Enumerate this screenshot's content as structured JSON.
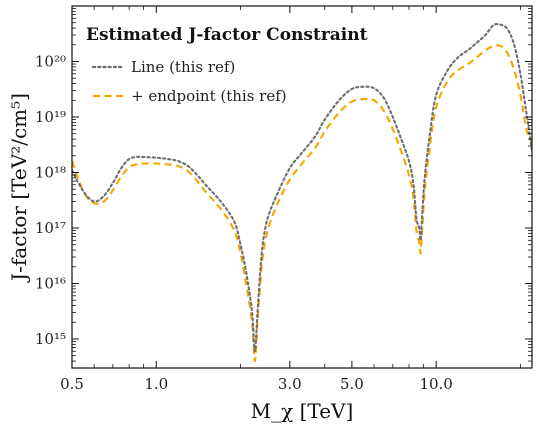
{
  "chart_data": {
    "type": "line",
    "xscale": "log",
    "yscale": "log",
    "xlim": [
      0.5,
      22
    ],
    "ylim": [
      300000000000000.0,
      1e+21
    ],
    "xlabel": "M_χ [TeV]",
    "ylabel": "J-factor [TeV²/cm⁵]",
    "x_ticks": [
      {
        "value": 0.5,
        "label": "0.5"
      },
      {
        "value": 1.0,
        "label": "1.0"
      },
      {
        "value": 3.0,
        "label": "3.0"
      },
      {
        "value": 5.0,
        "label": "5.0"
      },
      {
        "value": 10.0,
        "label": "10.0"
      }
    ],
    "y_ticks": [
      {
        "value": 1000000000000000.0,
        "label": "10¹⁵"
      },
      {
        "value": 1e+16,
        "label": "10¹⁶"
      },
      {
        "value": 1e+17,
        "label": "10¹⁷"
      },
      {
        "value": 1e+18,
        "label": "10¹⁸"
      },
      {
        "value": 1e+19,
        "label": "10¹⁹"
      },
      {
        "value": 1e+20,
        "label": "10²⁰"
      }
    ],
    "legend": {
      "title": "Estimated J-factor Constraint",
      "placement": "top-left",
      "entries": [
        "Line (this ref)",
        "+ endpoint (this ref)"
      ]
    },
    "series": [
      {
        "name": "Line (this ref)",
        "color": "#6e6e6e",
        "style": "dotted",
        "x": [
          0.5,
          0.55,
          0.6,
          0.65,
          0.7,
          0.75,
          0.8,
          0.85,
          0.9,
          1.0,
          1.1,
          1.2,
          1.3,
          1.4,
          1.5,
          1.7,
          1.9,
          2.0,
          2.1,
          2.2,
          2.25,
          2.3,
          2.35,
          2.4,
          2.5,
          2.7,
          3.0,
          3.3,
          3.7,
          4.0,
          4.5,
          5.0,
          5.5,
          6.0,
          6.5,
          7.0,
          7.5,
          8.0,
          8.3,
          8.5,
          8.7,
          8.8,
          8.9,
          9.1,
          9.5,
          10.0,
          11.0,
          12.0,
          13.0,
          14.0,
          15.0,
          16.0,
          17.0,
          18.0,
          19.0,
          20.0,
          21.0,
          22.0
        ],
        "y": [
          1.1e+18,
          4.5e+17,
          3e+17,
          3.8e+17,
          6.5e+17,
          1.2e+18,
          1.75e+18,
          1.9e+18,
          1.9e+18,
          1.85e+18,
          1.75e+18,
          1.6e+18,
          1.3e+18,
          9e+17,
          6e+17,
          3e+17,
          1.3e+17,
          5e+16,
          1.5e+16,
          3000000000000000.0,
          600000000000000.0,
          3000000000000000.0,
          1.5e+16,
          5e+16,
          1.5e+17,
          4e+17,
          1.2e+18,
          2.2e+18,
          4.5e+18,
          9e+18,
          2e+19,
          3.2e+19,
          3.5e+19,
          3.3e+19,
          2.2e+19,
          1e+19,
          4e+18,
          1.6e+18,
          6e+17,
          1.5e+17,
          1e+17,
          6e+16,
          1.5e+17,
          8e+17,
          5e+18,
          2.5e+19,
          7e+19,
          1.2e+20,
          1.6e+20,
          2.2e+20,
          3e+20,
          4.5e+20,
          4.6e+20,
          3.8e+20,
          2e+20,
          6e+19,
          1.2e+19,
          2.5e+18
        ]
      },
      {
        "name": "+ endpoint (this ref)",
        "color": "#f5a500",
        "style": "dashed",
        "x": [
          0.5,
          0.55,
          0.6,
          0.65,
          0.7,
          0.75,
          0.8,
          0.85,
          0.9,
          1.0,
          1.1,
          1.2,
          1.3,
          1.4,
          1.5,
          1.7,
          1.9,
          2.0,
          2.1,
          2.2,
          2.25,
          2.3,
          2.35,
          2.4,
          2.5,
          2.7,
          3.0,
          3.3,
          3.7,
          4.0,
          4.5,
          5.0,
          5.5,
          6.0,
          6.5,
          7.0,
          7.5,
          8.0,
          8.3,
          8.5,
          8.7,
          8.8,
          8.9,
          9.1,
          9.5,
          10.0,
          11.0,
          12.0,
          13.0,
          14.0,
          15.0,
          16.0,
          17.0,
          18.0,
          19.0,
          20.0,
          21.0,
          22.0
        ],
        "y": [
          1.6e+18,
          4.5e+17,
          2.8e+17,
          3e+17,
          4.8e+17,
          8.5e+17,
          1.25e+18,
          1.4e+18,
          1.45e+18,
          1.45e+18,
          1.4e+18,
          1.3e+18,
          1.05e+18,
          7e+17,
          4.5e+17,
          2.2e+17,
          9e+16,
          3.5e+16,
          9000000000000000.0,
          2000000000000000.0,
          400000000000000.0,
          2000000000000000.0,
          9000000000000000.0,
          3e+16,
          9e+16,
          2.6e+17,
          7.5e+17,
          1.4e+18,
          2.8e+18,
          5.5e+18,
          1.2e+19,
          1.9e+19,
          2.1e+19,
          2e+19,
          1.3e+19,
          6e+18,
          2.4e+18,
          9e+17,
          3.5e+17,
          9e+16,
          5.5e+16,
          3.5e+16,
          8e+16,
          4.5e+17,
          3e+18,
          1.5e+19,
          4.5e+19,
          7e+19,
          9e+19,
          1.2e+20,
          1.6e+20,
          1.9e+20,
          1.9e+20,
          1.4e+20,
          7e+19,
          2.5e+19,
          6e+18,
          3.5e+18
        ]
      }
    ]
  }
}
